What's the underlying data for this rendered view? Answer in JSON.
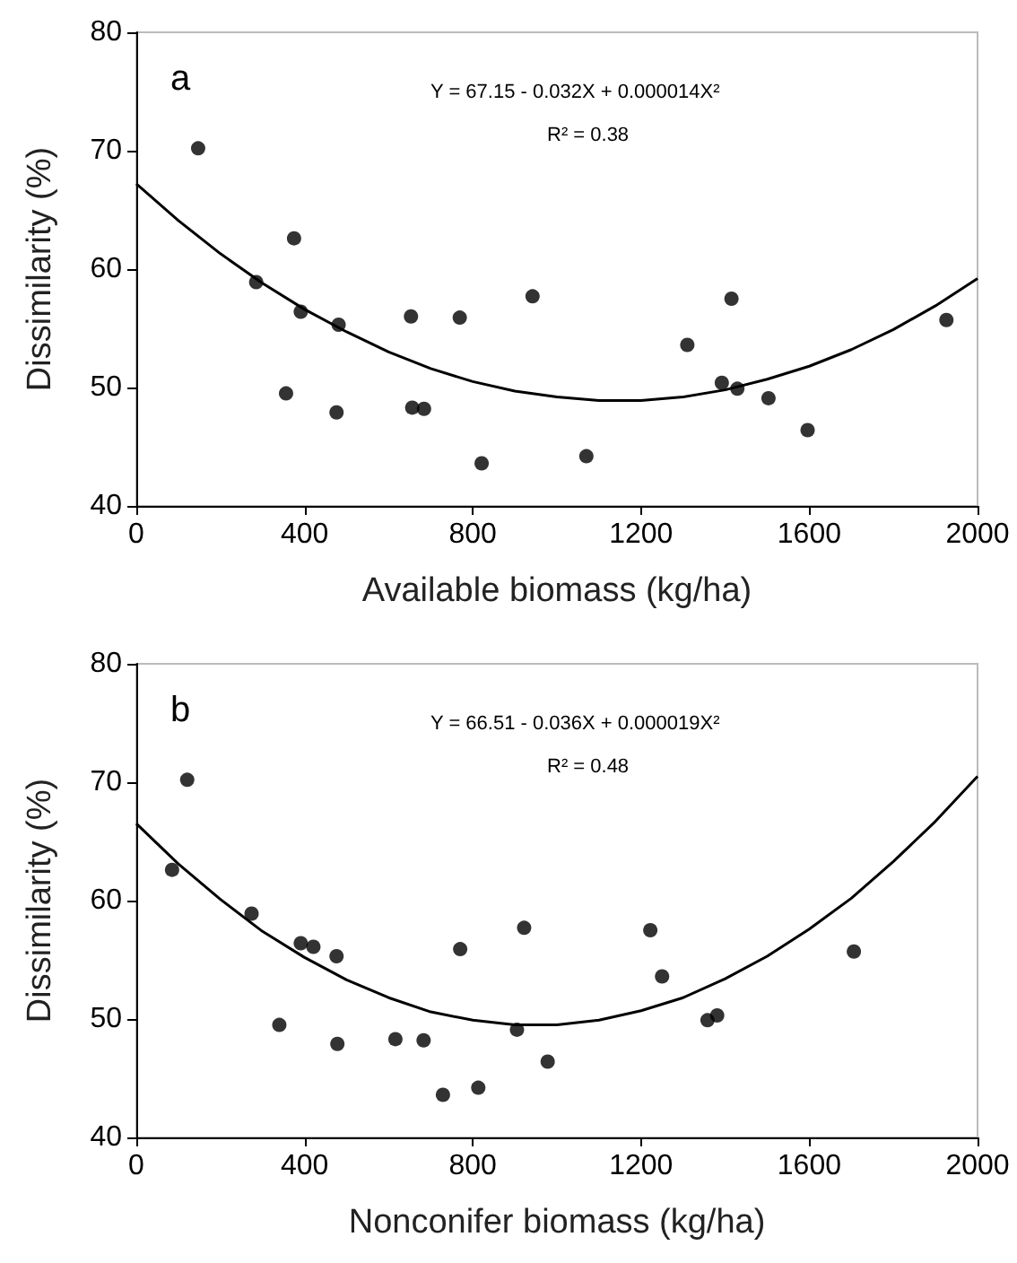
{
  "chart_data": [
    {
      "type": "scatter",
      "xlabel": "Available biomass (kg/ha)",
      "ylabel": "Dissimilarity (%)",
      "annotations": [
        "a",
        "Y = 67.15 - 0.032X + 0.000014X²",
        "R² = 0.38"
      ],
      "xlim": [
        0,
        2000
      ],
      "xticks": [
        0,
        400,
        800,
        1200,
        1600,
        2000
      ],
      "ylim": [
        40,
        80
      ],
      "yticks": [
        40,
        50,
        60,
        70,
        80
      ],
      "grid": false,
      "series": [
        {
          "color": "#000000",
          "marker": "circle",
          "x": [
            147,
            285,
            375,
            391,
            356,
            481,
            476,
            653,
            656,
            684,
            769,
            821,
            942,
            1070,
            1310,
            1392,
            1415,
            1429,
            1503,
            1596,
            1926
          ],
          "values": [
            70.2,
            58.9,
            62.6,
            56.4,
            49.5,
            55.3,
            47.9,
            56.0,
            48.3,
            48.2,
            55.9,
            43.6,
            57.7,
            44.2,
            53.6,
            50.4,
            57.5,
            49.9,
            49.1,
            46.4,
            55.7
          ]
        },
        {
          "type": "line",
          "color": "#000000",
          "line_style": "solid",
          "x": [
            0,
            100,
            200,
            300,
            400,
            500,
            600,
            700,
            800,
            900,
            1000,
            1100,
            1200,
            1300,
            1400,
            1500,
            1600,
            1700,
            1800,
            1900,
            2000
          ],
          "values": [
            67.2,
            64.1,
            61.3,
            58.8,
            56.6,
            54.7,
            53.0,
            51.6,
            50.5,
            49.7,
            49.2,
            48.9,
            48.9,
            49.2,
            49.8,
            50.7,
            51.8,
            53.2,
            54.9,
            56.9,
            59.2
          ]
        }
      ]
    },
    {
      "type": "scatter",
      "xlabel": "Nonconifer biomass (kg/ha)",
      "ylabel": "Dissimilarity (%)",
      "annotations": [
        "b",
        "Y = 66.51 - 0.036X + 0.000019X²",
        "R² = 0.48"
      ],
      "xlim": [
        0,
        2000
      ],
      "xticks": [
        0,
        400,
        800,
        1200,
        1600,
        2000
      ],
      "ylim": [
        40,
        80
      ],
      "yticks": [
        40,
        50,
        60,
        70,
        80
      ],
      "grid": false,
      "series": [
        {
          "color": "#000000",
          "marker": "circle",
          "x": [
            121,
            85,
            274,
            391,
            421,
            476,
            340,
            478,
            616,
            683,
            729,
            770,
            813,
            905,
            922,
            978,
            1222,
            1250,
            1358,
            1381,
            1706
          ],
          "values": [
            70.2,
            62.6,
            58.9,
            56.4,
            56.1,
            55.3,
            49.5,
            47.9,
            48.3,
            48.2,
            43.6,
            55.9,
            44.2,
            49.1,
            57.7,
            46.4,
            57.5,
            53.6,
            49.9,
            50.3,
            55.7
          ]
        },
        {
          "type": "line",
          "color": "#000000",
          "line_style": "solid",
          "x": [
            0,
            100,
            200,
            300,
            400,
            500,
            600,
            700,
            800,
            900,
            1000,
            1100,
            1200,
            1300,
            1400,
            1500,
            1600,
            1700,
            1800,
            1900,
            2000
          ],
          "values": [
            66.5,
            63.1,
            60.1,
            57.4,
            55.2,
            53.3,
            51.8,
            50.6,
            49.9,
            49.5,
            49.5,
            49.9,
            50.7,
            51.8,
            53.4,
            55.3,
            57.6,
            60.2,
            63.3,
            66.7,
            70.5
          ]
        }
      ]
    }
  ]
}
